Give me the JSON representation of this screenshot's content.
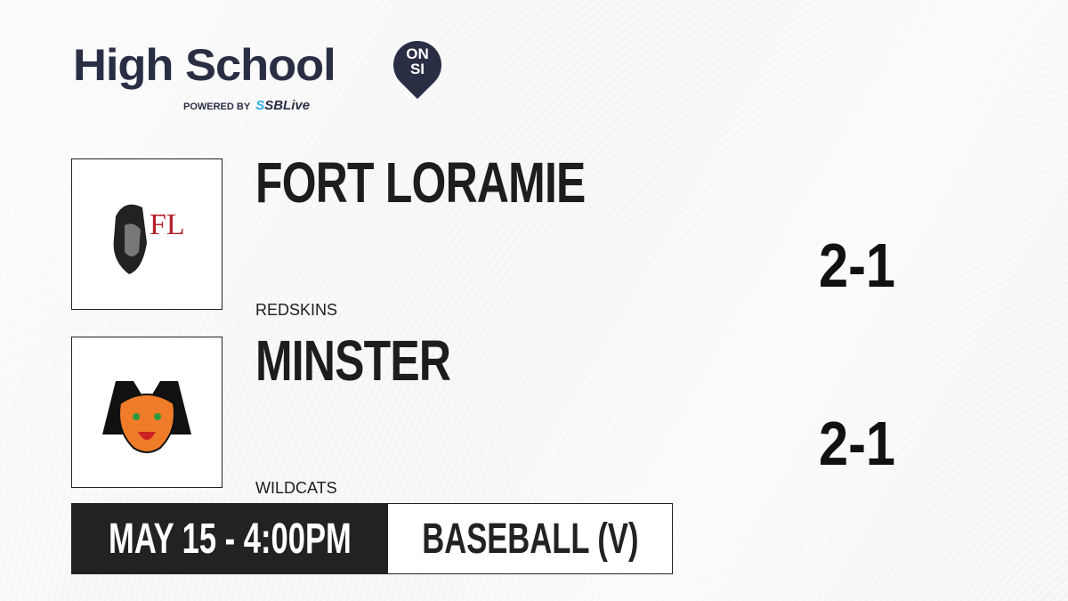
{
  "brand": {
    "title": "High School",
    "badge_top": "ON",
    "badge_bottom": "SI",
    "powered_by": "POWERED BY",
    "partner_prefix": "S",
    "partner": "SBLive",
    "accent": "#2ab0e6",
    "color": "#2a2e45"
  },
  "teams": [
    {
      "name": "FORT LORAMIE",
      "mascot": "REDSKINS",
      "record": "2-1",
      "logo_text": "FL",
      "logo_color": "#b3202a"
    },
    {
      "name": "MINSTER",
      "mascot": "WILDCATS",
      "record": "2-1",
      "logo_text": "M",
      "logo_color": "#f07c2a"
    }
  ],
  "game": {
    "datetime": "MAY 15 - 4:00PM",
    "sport": "BASEBALL (V)"
  }
}
